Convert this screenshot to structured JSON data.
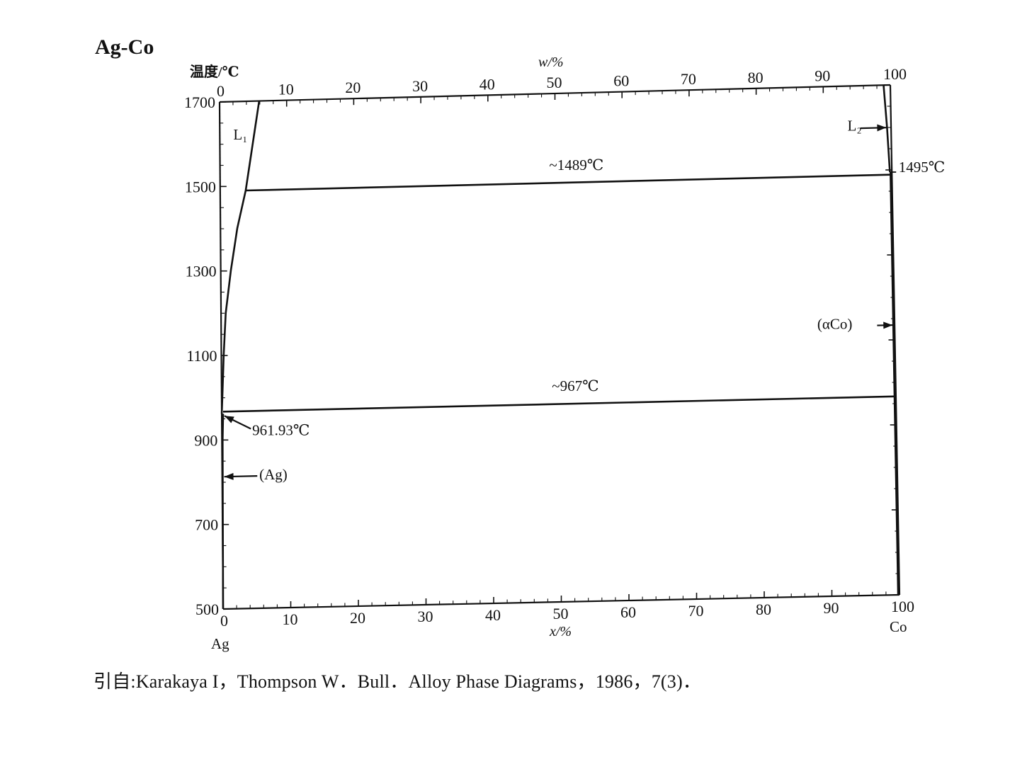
{
  "chart_data": {
    "type": "line",
    "title": "Ag-Co",
    "ylabel": "温度/℃",
    "xlabel_top": "w/%",
    "xlabel_bottom": "x/%",
    "left_element": "Ag",
    "right_element": "Co",
    "xlim": [
      0,
      100
    ],
    "ylim": [
      500,
      1700
    ],
    "y_ticks": [
      500,
      700,
      900,
      1100,
      1300,
      1500,
      1700
    ],
    "x_ticks_bottom": [
      0,
      10,
      20,
      30,
      40,
      50,
      60,
      70,
      80,
      90,
      100
    ],
    "x_ticks_top": [
      0,
      10,
      20,
      30,
      40,
      50,
      60,
      70,
      80,
      90,
      100
    ],
    "series": [
      {
        "x": [
          0,
          0.1,
          0.35,
          0.7,
          1.5,
          2.5,
          3.8,
          5.9
        ],
        "y": [
          961.93,
          1000,
          1100,
          1200,
          1300,
          1400,
          1489,
          1700
        ]
      },
      {
        "x": [
          0,
          0.05,
          0.1,
          0.2
        ],
        "y": [
          500,
          700,
          900,
          961.93
        ]
      },
      {
        "x": [
          3.8,
          99.7
        ],
        "y": [
          1489,
          1489
        ]
      },
      {
        "x": [
          0.2,
          99.8
        ],
        "y": [
          967,
          967
        ]
      },
      {
        "x": [
          99.7,
          99.4,
          99.0
        ],
        "y": [
          1495,
          1600,
          1700
        ]
      },
      {
        "x": [
          99.8,
          99.8,
          99.8
        ],
        "y": [
          500,
          967,
          1495
        ]
      }
    ],
    "annotations": [
      {
        "text": "L₁",
        "x": 2.0,
        "y": 1610
      },
      {
        "text": "L₂",
        "x": 93.5,
        "y": 1595
      },
      {
        "text": "~1489℃",
        "x": 49,
        "y": 1520
      },
      {
        "text": "1495℃",
        "x": 101.0,
        "y": 1495
      },
      {
        "text": "~967℃",
        "x": 49,
        "y": 998
      },
      {
        "text": "961.93℃",
        "x": 4.5,
        "y": 910
      },
      {
        "text": "(Ag)",
        "x": 5.5,
        "y": 805
      },
      {
        "text": "(αCo)",
        "x": 88.5,
        "y": 1130
      }
    ],
    "grid": false
  },
  "citation": "引自:Karakaya I，Thompson W．Bull．Alloy Phase Diagrams，1986，7(3)．"
}
